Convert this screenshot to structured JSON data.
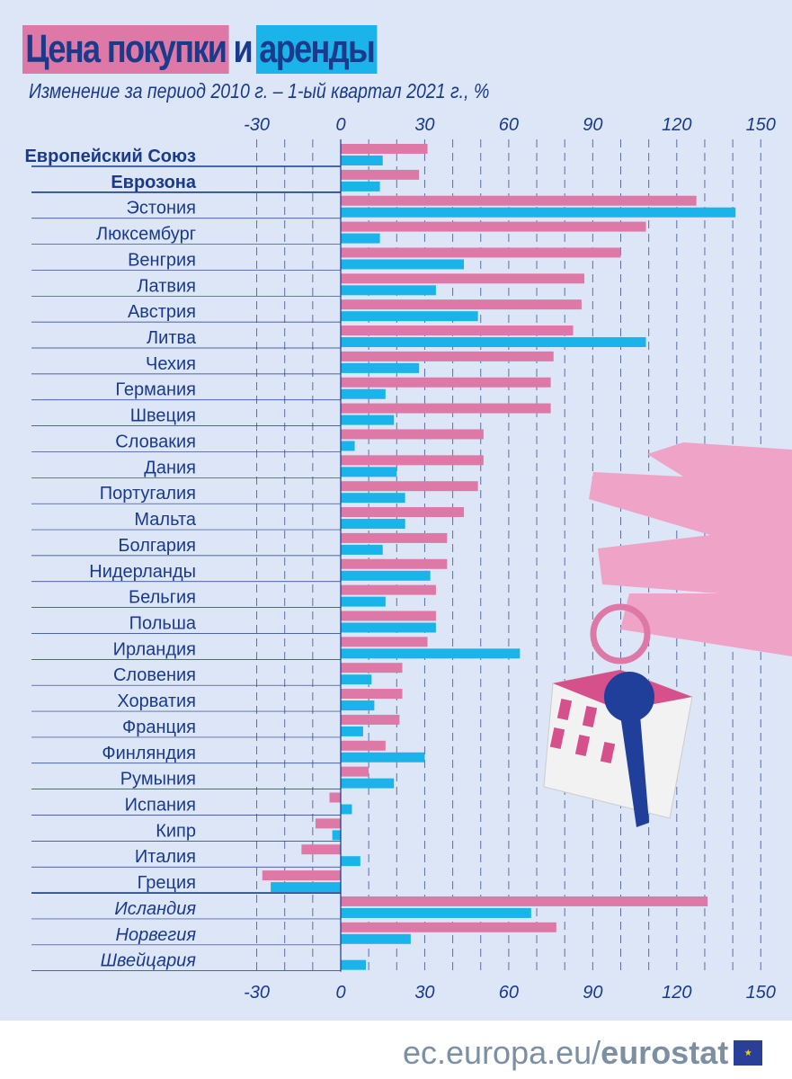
{
  "title": {
    "part1": "Цена покупки",
    "part2": "и",
    "part3": "аренды"
  },
  "subtitle": "Изменение за период 2010 г. – 1-ый квартал 2021 г., %",
  "footer": {
    "site": "ec.europa.eu/",
    "brand": "eurostat"
  },
  "colors": {
    "purchase": "#de78a6",
    "rent": "#1ab4ea",
    "text": "#1a3a8c",
    "background": "#dce6f6"
  },
  "chart_data": {
    "type": "bar",
    "orientation": "horizontal",
    "xlim": [
      -30,
      150
    ],
    "ticks": [
      "-30",
      "0",
      "30",
      "60",
      "90",
      "120",
      "150"
    ],
    "grid": "dashed vertical every 10",
    "categories": [
      "Европейский Союз",
      "Еврозона",
      "Эстония",
      "Люксембург",
      "Венгрия",
      "Латвия",
      "Австрия",
      "Литва",
      "Чехия",
      "Германия",
      "Швеция",
      "Словакия",
      "Дания",
      "Португалия",
      "Мальта",
      "Болгария",
      "Нидерланды",
      "Бельгия",
      "Польша",
      "Ирландия",
      "Словения",
      "Хорватия",
      "Франция",
      "Финляндия",
      "Румыния",
      "Испания",
      "Кипр",
      "Италия",
      "Греция",
      "Исландия",
      "Норвегия",
      "Швейцария"
    ],
    "series": [
      {
        "color": "#de78a6",
        "values": [
          31,
          28,
          127,
          109,
          100,
          87,
          86,
          83,
          76,
          75,
          75,
          51,
          51,
          49,
          44,
          38,
          38,
          34,
          34,
          31,
          22,
          22,
          21,
          16,
          10,
          -4,
          -9,
          -14,
          -28,
          131,
          77,
          null
        ]
      },
      {
        "color": "#1ab4ea",
        "values": [
          15,
          14,
          141,
          14,
          44,
          34,
          49,
          109,
          28,
          16,
          19,
          5,
          20,
          23,
          23,
          15,
          32,
          16,
          34,
          64,
          11,
          12,
          8,
          30,
          19,
          4,
          -3,
          7,
          -25,
          68,
          25,
          9
        ]
      }
    ]
  }
}
